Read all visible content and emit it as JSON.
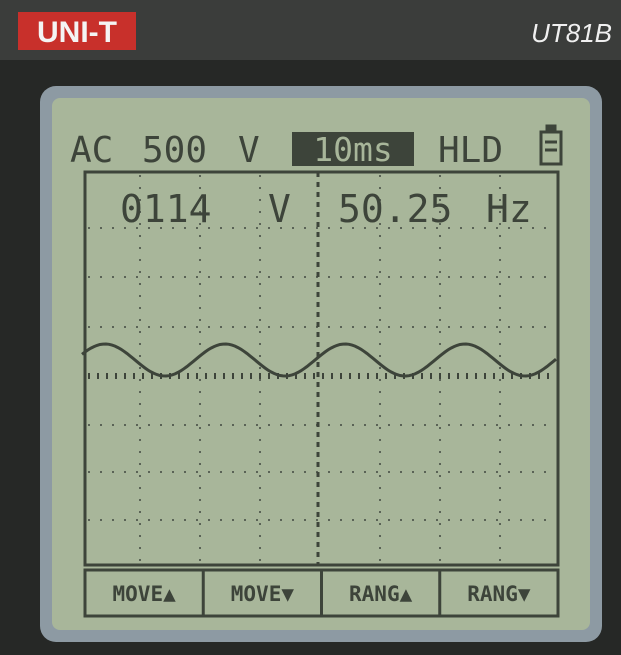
{
  "device": {
    "brand": "UNI-T",
    "model": "UT81B"
  },
  "status": {
    "coupling": "AC",
    "range": "500",
    "unit": "V",
    "timebase": "10ms",
    "hold": "HLD"
  },
  "readout": {
    "voltage": "0114",
    "voltage_unit": "V",
    "frequency": "50.25",
    "frequency_unit": "Hz"
  },
  "softkeys": [
    "MOVE▲",
    "MOVE▼",
    "RANG▲",
    "RANG▼"
  ]
}
